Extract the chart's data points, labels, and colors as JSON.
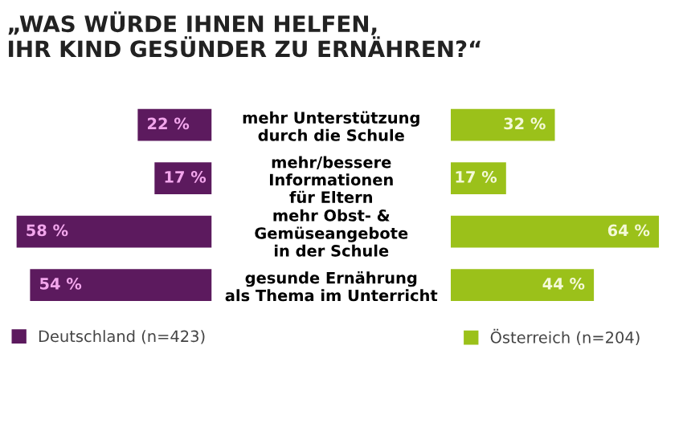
{
  "chart_data": [
    {
      "type": "bar",
      "orientation": "horizontal",
      "title": "„WAS WÜRDE IHNEN HELFEN,\nIHR KIND GESÜNDER ZU ERNÄHREN?“",
      "categories": [
        "mehr Unterstützung\ndurch die Schule",
        "mehr/bessere\nInformationen\nfür Eltern",
        "mehr Obst- &\nGemüseangebote\nin der Schule",
        "gesunde Ernährung\nals Thema im Unterricht"
      ],
      "series": [
        {
          "name": "Deutschland (n=423)",
          "color": "#5c1a5e",
          "values": [
            22,
            17,
            58,
            54
          ],
          "value_labels": [
            "22 %",
            "17 %",
            "58 %",
            "54 %"
          ]
        }
      ],
      "legend": "bottom"
    },
    {
      "type": "bar",
      "orientation": "horizontal",
      "series": [
        {
          "name": "Österreich (n=204)",
          "color": "#9bc11a",
          "values": [
            32,
            17,
            64,
            44
          ],
          "value_labels": [
            "32 %",
            "17 %",
            "64 %",
            "44 %"
          ]
        }
      ],
      "legend": "bottom left"
    }
  ]
}
